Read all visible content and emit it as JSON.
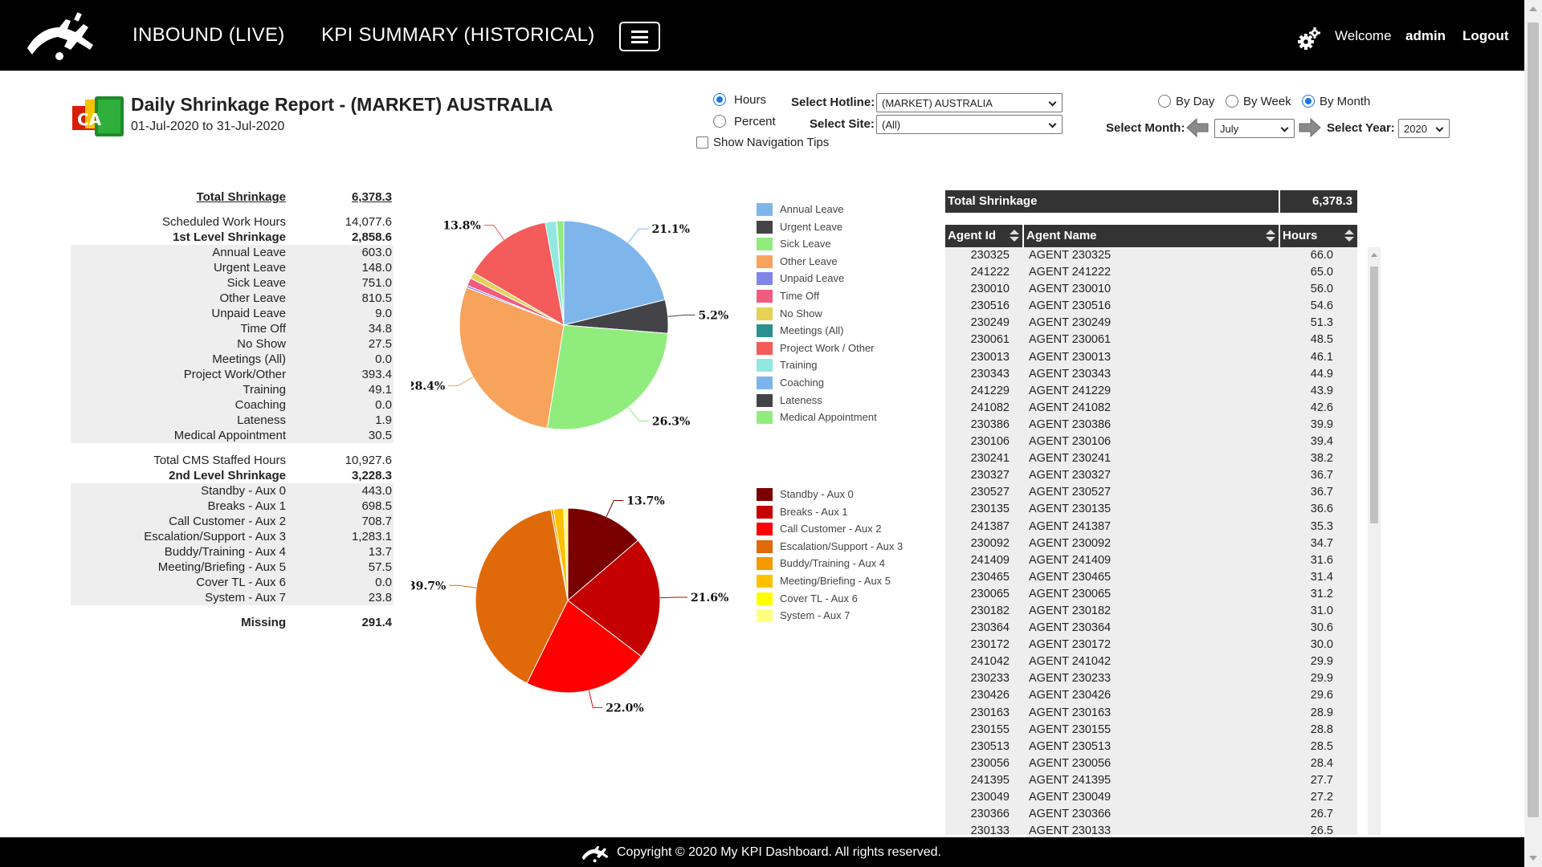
{
  "topbar": {
    "nav_inbound": "INBOUND (LIVE)",
    "nav_kpi": "KPI SUMMARY (HISTORICAL)",
    "welcome": "Welcome",
    "user": "admin",
    "logout": "Logout"
  },
  "report": {
    "title": "Daily Shrinkage Report - (MARKET) AUSTRALIA",
    "date_range": "01-Jul-2020 to 31-Jul-2020",
    "icon_letters": "CA"
  },
  "controls": {
    "hours_label": "Hours",
    "percent_label": "Percent",
    "mode_selected": "Hours",
    "nav_tips_label": "Show Navigation Tips",
    "hotline_label": "Select Hotline:",
    "hotline_value": "(MARKET) AUSTRALIA",
    "site_label": "Select Site:",
    "site_value": "(All)",
    "by_day": "By Day",
    "by_week": "By Week",
    "by_month": "By Month",
    "period_selected": "By Month",
    "month_label": "Select Month:",
    "month_value": "July",
    "year_label": "Select Year:",
    "year_value": "2020"
  },
  "summary": {
    "rows": [
      {
        "label": "Total Shrinkage",
        "value": "6,378.3",
        "style": "bold ul"
      },
      {
        "label": "",
        "value": "",
        "style": "gap"
      },
      {
        "label": "Scheduled Work Hours",
        "value": "14,077.6",
        "style": ""
      },
      {
        "label": "1st Level Shrinkage",
        "value": "2,858.6",
        "style": "bold"
      },
      {
        "label": "Annual Leave",
        "value": "603.0",
        "style": "shade"
      },
      {
        "label": "Urgent Leave",
        "value": "148.0",
        "style": "shade"
      },
      {
        "label": "Sick Leave",
        "value": "751.0",
        "style": "shade"
      },
      {
        "label": "Other Leave",
        "value": "810.5",
        "style": "shade"
      },
      {
        "label": "Unpaid Leave",
        "value": "9.0",
        "style": "shade"
      },
      {
        "label": "Time Off",
        "value": "34.8",
        "style": "shade"
      },
      {
        "label": "No Show",
        "value": "27.5",
        "style": "shade"
      },
      {
        "label": "Meetings (All)",
        "value": "0.0",
        "style": "shade"
      },
      {
        "label": "Project Work/Other",
        "value": "393.4",
        "style": "shade"
      },
      {
        "label": "Training",
        "value": "49.1",
        "style": "shade"
      },
      {
        "label": "Coaching",
        "value": "0.0",
        "style": "shade"
      },
      {
        "label": "Lateness",
        "value": "1.9",
        "style": "shade"
      },
      {
        "label": "Medical Appointment",
        "value": "30.5",
        "style": "shade"
      },
      {
        "label": "",
        "value": "",
        "style": "gap"
      },
      {
        "label": "Total CMS Staffed Hours",
        "value": "10,927.6",
        "style": ""
      },
      {
        "label": "2nd Level Shrinkage",
        "value": "3,228.3",
        "style": "bold"
      },
      {
        "label": "Standby - Aux 0",
        "value": "443.0",
        "style": "shade"
      },
      {
        "label": "Breaks - Aux 1",
        "value": "698.5",
        "style": "shade"
      },
      {
        "label": "Call Customer - Aux 2",
        "value": "708.7",
        "style": "shade"
      },
      {
        "label": "Escalation/Support - Aux 3",
        "value": "1,283.1",
        "style": "shade"
      },
      {
        "label": "Buddy/Training - Aux 4",
        "value": "13.7",
        "style": "shade"
      },
      {
        "label": "Meeting/Briefing - Aux 5",
        "value": "57.5",
        "style": "shade"
      },
      {
        "label": "Cover TL - Aux 6",
        "value": "0.0",
        "style": "shade"
      },
      {
        "label": "System - Aux 7",
        "value": "23.8",
        "style": "shade"
      },
      {
        "label": "",
        "value": "",
        "style": "gap"
      },
      {
        "label": "Missing",
        "value": "291.4",
        "style": "bold"
      }
    ]
  },
  "chart_data": [
    {
      "type": "pie",
      "series": [
        {
          "name": "Annual Leave",
          "value": 603.0,
          "color": "#7eb6ec"
        },
        {
          "name": "Urgent Leave",
          "value": 148.0,
          "color": "#434348"
        },
        {
          "name": "Sick Leave",
          "value": 751.0,
          "color": "#90ed7d"
        },
        {
          "name": "Other Leave",
          "value": 810.5,
          "color": "#f7a35c"
        },
        {
          "name": "Unpaid Leave",
          "value": 9.0,
          "color": "#8085e9"
        },
        {
          "name": "Time Off",
          "value": 34.8,
          "color": "#f15c80"
        },
        {
          "name": "No Show",
          "value": 27.5,
          "color": "#e4d354"
        },
        {
          "name": "Meetings (All)",
          "value": 0.0,
          "color": "#2b908f"
        },
        {
          "name": "Project Work / Other",
          "value": 393.4,
          "color": "#f45b5b"
        },
        {
          "name": "Training",
          "value": 49.1,
          "color": "#91e8e1"
        },
        {
          "name": "Coaching",
          "value": 0.0,
          "color": "#7cb5ec"
        },
        {
          "name": "Lateness",
          "value": 1.9,
          "color": "#434348"
        },
        {
          "name": "Medical Appointment",
          "value": 30.5,
          "color": "#90ed7d"
        }
      ],
      "data_labels": [
        {
          "text": "21.1%",
          "slice": "Annual Leave"
        },
        {
          "text": "5.2%",
          "slice": "Urgent Leave"
        },
        {
          "text": "26.3%",
          "slice": "Sick Leave"
        },
        {
          "text": "28.4%",
          "slice": "Other Leave"
        },
        {
          "text": "13.8%",
          "slice": "Project Work / Other"
        }
      ]
    },
    {
      "type": "pie",
      "series": [
        {
          "name": "Standby - Aux 0",
          "value": 443.0,
          "color": "#7a0000"
        },
        {
          "name": "Breaks - Aux 1",
          "value": 698.5,
          "color": "#c40000"
        },
        {
          "name": "Call Customer - Aux 2",
          "value": 708.7,
          "color": "#ff0000"
        },
        {
          "name": "Escalation/Support - Aux 3",
          "value": 1283.1,
          "color": "#e06a0a"
        },
        {
          "name": "Buddy/Training - Aux 4",
          "value": 13.7,
          "color": "#f59a00"
        },
        {
          "name": "Meeting/Briefing - Aux 5",
          "value": 57.5,
          "color": "#ffc000"
        },
        {
          "name": "Cover TL - Aux 6",
          "value": 0.0,
          "color": "#ffff00"
        },
        {
          "name": "System - Aux 7",
          "value": 23.8,
          "color": "#ffff80"
        }
      ],
      "data_labels": [
        {
          "text": "13.7%",
          "slice": "Standby - Aux 0"
        },
        {
          "text": "21.6%",
          "slice": "Breaks - Aux 1"
        },
        {
          "text": "22.0%",
          "slice": "Call Customer - Aux 2"
        },
        {
          "text": "39.7%",
          "slice": "Escalation/Support - Aux 3"
        }
      ]
    }
  ],
  "agents": {
    "total_label": "Total Shrinkage",
    "total_value": "6,378.3",
    "columns": [
      "Agent Id",
      "Agent Name",
      "Hours"
    ],
    "rows": [
      [
        "230325",
        "AGENT 230325",
        "66.0"
      ],
      [
        "241222",
        "AGENT 241222",
        "65.0"
      ],
      [
        "230010",
        "AGENT 230010",
        "56.0"
      ],
      [
        "230516",
        "AGENT 230516",
        "54.6"
      ],
      [
        "230249",
        "AGENT 230249",
        "51.3"
      ],
      [
        "230061",
        "AGENT 230061",
        "48.5"
      ],
      [
        "230013",
        "AGENT 230013",
        "46.1"
      ],
      [
        "230343",
        "AGENT 230343",
        "44.9"
      ],
      [
        "241229",
        "AGENT 241229",
        "43.9"
      ],
      [
        "241082",
        "AGENT 241082",
        "42.6"
      ],
      [
        "230386",
        "AGENT 230386",
        "39.9"
      ],
      [
        "230106",
        "AGENT 230106",
        "39.4"
      ],
      [
        "230241",
        "AGENT 230241",
        "38.2"
      ],
      [
        "230327",
        "AGENT 230327",
        "36.7"
      ],
      [
        "230527",
        "AGENT 230527",
        "36.7"
      ],
      [
        "230135",
        "AGENT 230135",
        "36.6"
      ],
      [
        "241387",
        "AGENT 241387",
        "35.3"
      ],
      [
        "230092",
        "AGENT 230092",
        "34.7"
      ],
      [
        "241409",
        "AGENT 241409",
        "31.6"
      ],
      [
        "230465",
        "AGENT 230465",
        "31.4"
      ],
      [
        "230065",
        "AGENT 230065",
        "31.2"
      ],
      [
        "230182",
        "AGENT 230182",
        "31.0"
      ],
      [
        "230364",
        "AGENT 230364",
        "30.6"
      ],
      [
        "230172",
        "AGENT 230172",
        "30.0"
      ],
      [
        "241042",
        "AGENT 241042",
        "29.9"
      ],
      [
        "230233",
        "AGENT 230233",
        "29.9"
      ],
      [
        "230426",
        "AGENT 230426",
        "29.6"
      ],
      [
        "230163",
        "AGENT 230163",
        "28.9"
      ],
      [
        "230155",
        "AGENT 230155",
        "28.8"
      ],
      [
        "230513",
        "AGENT 230513",
        "28.5"
      ],
      [
        "230056",
        "AGENT 230056",
        "28.4"
      ],
      [
        "241395",
        "AGENT 241395",
        "27.7"
      ],
      [
        "230049",
        "AGENT 230049",
        "27.2"
      ],
      [
        "230366",
        "AGENT 230366",
        "26.7"
      ],
      [
        "230133",
        "AGENT 230133",
        "26.5"
      ]
    ]
  },
  "footer": {
    "copyright": "Copyright © 2020 My KPI Dashboard. All rights reserved."
  }
}
